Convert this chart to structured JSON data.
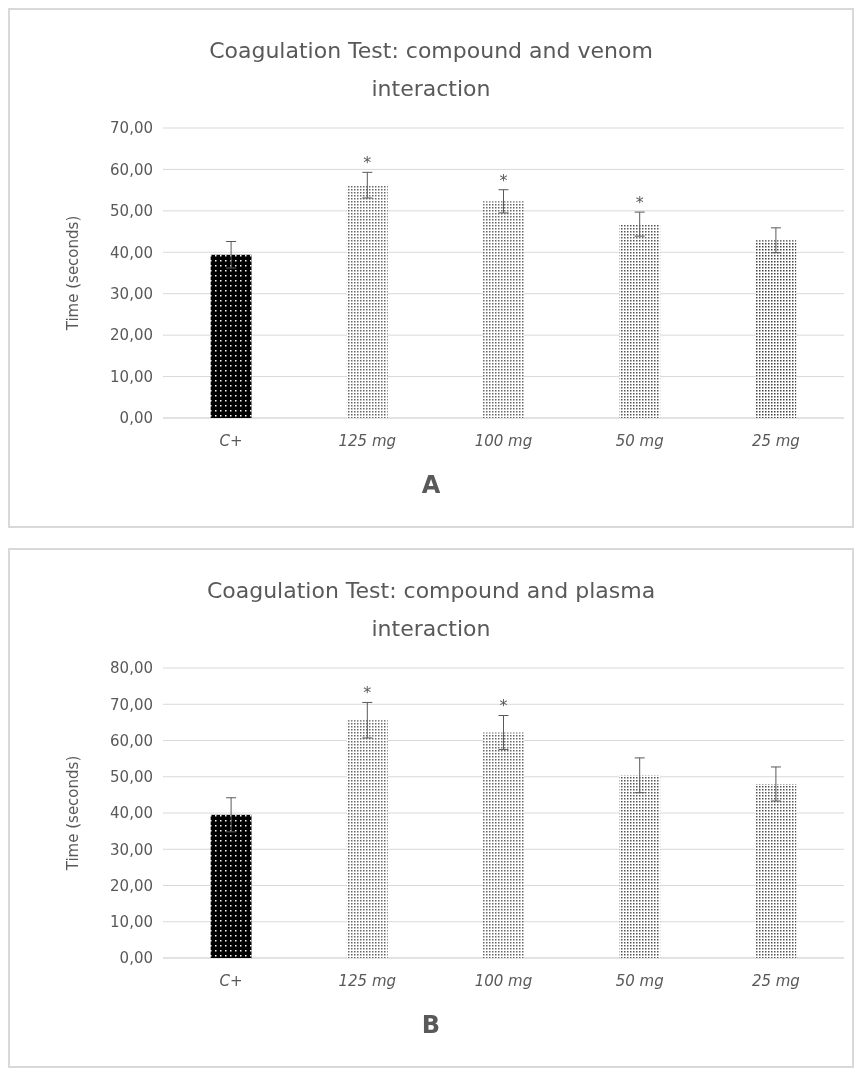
{
  "chart_data": [
    {
      "type": "bar",
      "title": "Coagulation Test: compound and venom interaction",
      "ylabel": "Time (seconds)",
      "categories": [
        "C+",
        "125 mg",
        "100 mg",
        "50 mg",
        "25 mg"
      ],
      "values": [
        39.4,
        56.2,
        52.3,
        46.8,
        42.9
      ],
      "errors": [
        3.2,
        3.1,
        2.8,
        2.9,
        3.0
      ],
      "colors": [
        "#000000",
        "#666666",
        "#666666",
        "#555555",
        "#444444"
      ],
      "ylim": [
        0,
        70
      ],
      "yticks": [
        {
          "value": 0,
          "label": "0,00"
        },
        {
          "value": 10,
          "label": "10,00"
        },
        {
          "value": 20,
          "label": "20,00"
        },
        {
          "value": 30,
          "label": "30,00"
        },
        {
          "value": 40,
          "label": "40,00"
        },
        {
          "value": 50,
          "label": "50,00"
        },
        {
          "value": 60,
          "label": "60,00"
        },
        {
          "value": 70,
          "label": "70,00"
        }
      ],
      "grid": "y",
      "annotations": [
        {
          "text": "*",
          "x": "125 mg",
          "y": 59.3
        },
        {
          "text": "*",
          "x": "100 mg",
          "y": 55.1
        },
        {
          "text": "*",
          "x": "50 mg",
          "y": 49.7
        },
        "A"
      ]
    },
    {
      "type": "bar",
      "title": "Coagulation Test: compound and plasma interaction",
      "ylabel": "Time (seconds)",
      "categories": [
        "C+",
        "125 mg",
        "100 mg",
        "50 mg",
        "25 mg"
      ],
      "values": [
        39.5,
        65.6,
        62.2,
        50.4,
        48.0
      ],
      "errors": [
        4.7,
        4.9,
        4.7,
        4.8,
        4.7
      ],
      "colors": [
        "#000000",
        "#666666",
        "#666666",
        "#555555",
        "#555555"
      ],
      "ylim": [
        0,
        80
      ],
      "yticks": [
        {
          "value": 0,
          "label": "0,00"
        },
        {
          "value": 10,
          "label": "10,00"
        },
        {
          "value": 20,
          "label": "20,00"
        },
        {
          "value": 30,
          "label": "30,00"
        },
        {
          "value": 40,
          "label": "40,00"
        },
        {
          "value": 50,
          "label": "50,00"
        },
        {
          "value": 60,
          "label": "60,00"
        },
        {
          "value": 70,
          "label": "70,00"
        },
        {
          "value": 80,
          "label": "80,00"
        }
      ],
      "grid": "y",
      "annotations": [
        {
          "text": "*",
          "x": "125 mg",
          "y": 70.5
        },
        {
          "text": "*",
          "x": "100 mg",
          "y": 66.9
        },
        "B"
      ]
    }
  ]
}
